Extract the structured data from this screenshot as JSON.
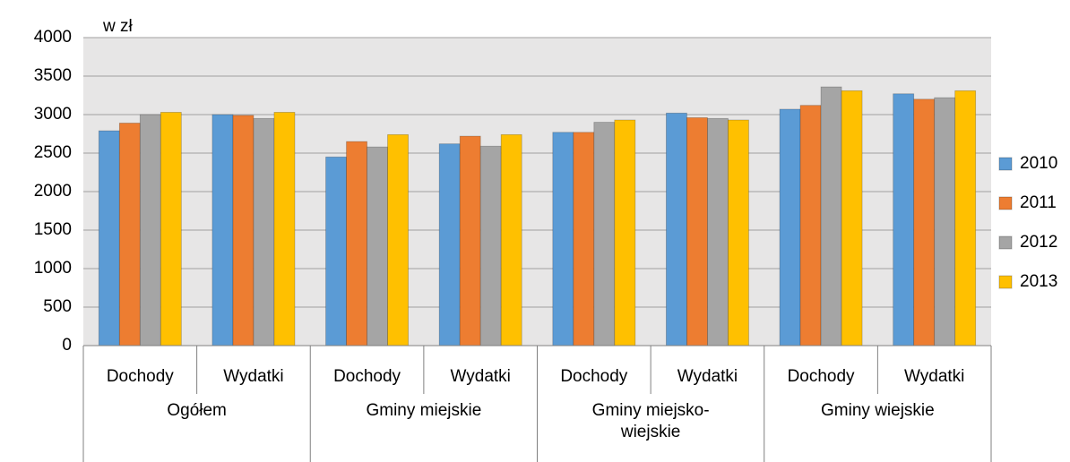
{
  "chart_data": {
    "type": "bar",
    "y_label": "w zł",
    "categories": [
      "Dochody",
      "Wydatki",
      "Dochody",
      "Wydatki",
      "Dochody",
      "Wydatki",
      "Dochody",
      "Wydatki"
    ],
    "groups": [
      "Ogółem",
      "Gminy miejskie",
      "Gminy miejsko-wiejskie",
      "Gminy wiejskie"
    ],
    "series": [
      {
        "name": "2010",
        "color": "#5b9bd5",
        "values": [
          2790,
          3000,
          2450,
          2620,
          2770,
          3020,
          3070,
          3270
        ]
      },
      {
        "name": "2011",
        "color": "#ed7d31",
        "values": [
          2890,
          2990,
          2650,
          2720,
          2770,
          2960,
          3120,
          3200
        ]
      },
      {
        "name": "2012",
        "color": "#a5a5a5",
        "values": [
          3000,
          2950,
          2580,
          2590,
          2900,
          2950,
          3360,
          3220
        ]
      },
      {
        "name": "2013",
        "color": "#ffc000",
        "values": [
          3030,
          3030,
          2740,
          2740,
          2930,
          2930,
          3310,
          3310
        ]
      }
    ],
    "ylim": [
      0,
      4000
    ],
    "yticks": [
      0,
      500,
      1000,
      1500,
      2000,
      2500,
      3000,
      3500,
      4000
    ],
    "grid": true,
    "legend": "right"
  }
}
